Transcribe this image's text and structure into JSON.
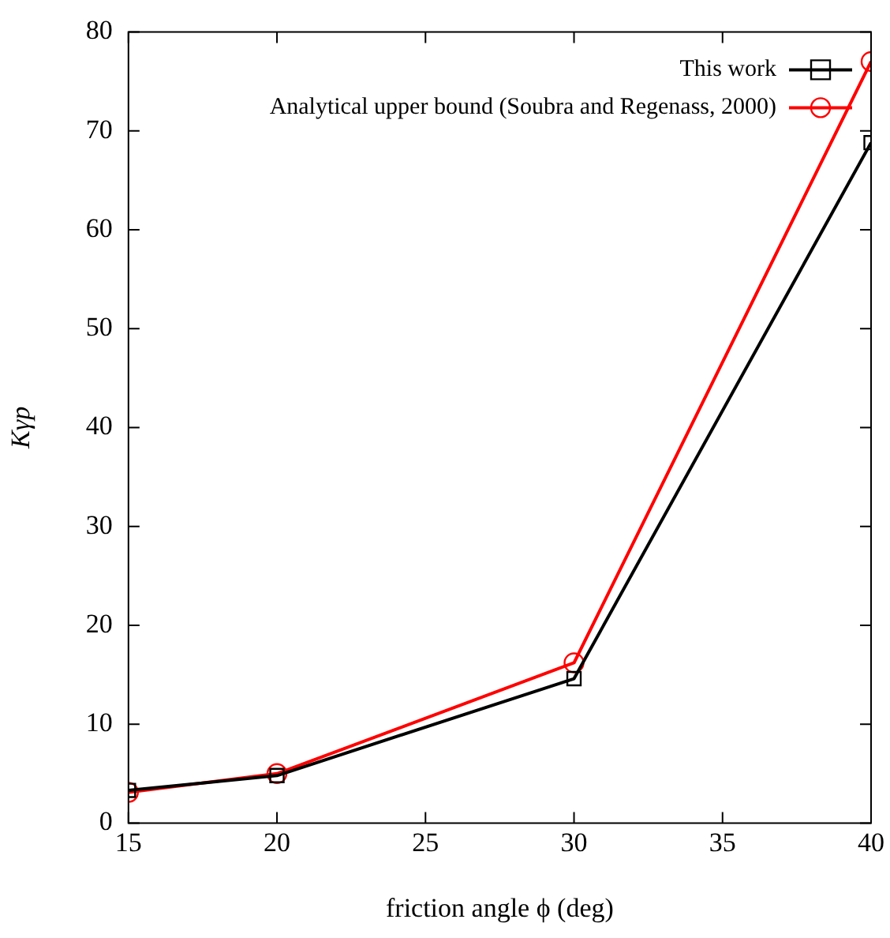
{
  "chart_data": {
    "type": "line",
    "xlabel": "friction angle ϕ (deg)",
    "ylabel": "Kγp",
    "x": [
      15,
      20,
      30,
      40
    ],
    "series": [
      {
        "name": "This work",
        "color": "#000000",
        "marker": "square",
        "values": [
          3.3,
          4.8,
          14.6,
          68.8
        ]
      },
      {
        "name": "Analytical upper bound (Soubra and Regenass, 2000)",
        "color": "#ff0000",
        "marker": "circle",
        "values": [
          3.1,
          5.0,
          16.2,
          77.0
        ]
      }
    ],
    "xlim": [
      15,
      40
    ],
    "xticks": [
      15,
      20,
      25,
      30,
      35,
      40
    ],
    "ylim": [
      0,
      80
    ],
    "yticks": [
      0,
      10,
      20,
      30,
      40,
      50,
      60,
      70,
      80
    ],
    "grid": false,
    "legend": "top right",
    "line_style": "solid"
  }
}
